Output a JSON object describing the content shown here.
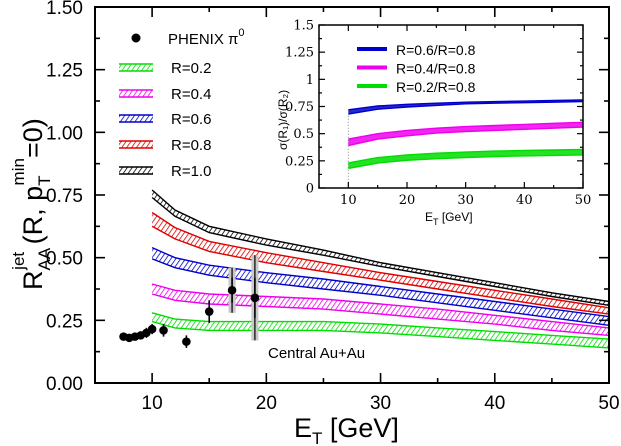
{
  "chart_data": [
    {
      "type": "area",
      "title": "",
      "xlabel": "E",
      "xlabel_sub": "T",
      "xlabel_unit": " [GeV]",
      "ylabel": {
        "base": "R",
        "sub": "AA",
        "sup": "jet",
        "paren_open": " (R, p",
        "paren_sub": "T",
        "paren_sup": "min",
        "paren_close": "=0)"
      },
      "xlim": [
        5,
        50
      ],
      "ylim": [
        0,
        1.5
      ],
      "xticks": [
        {
          "v": 10,
          "label": "10"
        },
        {
          "v": 20,
          "label": "20"
        },
        {
          "v": 30,
          "label": "30"
        },
        {
          "v": 40,
          "label": "40"
        },
        {
          "v": 50,
          "label": "50"
        }
      ],
      "yticks": [
        {
          "v": 0.0,
          "label": "0.00"
        },
        {
          "v": 0.25,
          "label": "0.25"
        },
        {
          "v": 0.5,
          "label": "0.50"
        },
        {
          "v": 0.75,
          "label": "0.75"
        },
        {
          "v": 1.0,
          "label": "1.00"
        },
        {
          "v": 1.25,
          "label": "1.25"
        },
        {
          "v": 1.5,
          "label": "1.50"
        }
      ],
      "series": [
        {
          "name": "R=0.2",
          "color": "#00dd00",
          "x": [
            10,
            12,
            15,
            20,
            25,
            30,
            35,
            40,
            45,
            50
          ],
          "upper": [
            0.28,
            0.255,
            0.245,
            0.245,
            0.245,
            0.235,
            0.22,
            0.205,
            0.19,
            0.175
          ],
          "lower": [
            0.245,
            0.22,
            0.21,
            0.21,
            0.21,
            0.2,
            0.185,
            0.17,
            0.155,
            0.14
          ]
        },
        {
          "name": "R=0.4",
          "color": "#ee00ee",
          "x": [
            10,
            12,
            15,
            20,
            25,
            30,
            35,
            40,
            45,
            50
          ],
          "upper": [
            0.395,
            0.37,
            0.355,
            0.345,
            0.335,
            0.315,
            0.295,
            0.27,
            0.245,
            0.22
          ],
          "lower": [
            0.355,
            0.33,
            0.315,
            0.305,
            0.295,
            0.275,
            0.255,
            0.235,
            0.21,
            0.19
          ]
        },
        {
          "name": "R=0.6",
          "color": "#0000cc",
          "x": [
            10,
            12,
            15,
            20,
            25,
            30,
            35,
            40,
            45,
            50
          ],
          "upper": [
            0.54,
            0.5,
            0.47,
            0.44,
            0.415,
            0.385,
            0.355,
            0.325,
            0.295,
            0.265
          ],
          "lower": [
            0.495,
            0.46,
            0.43,
            0.4,
            0.375,
            0.35,
            0.32,
            0.29,
            0.26,
            0.23
          ]
        },
        {
          "name": "R=0.8",
          "color": "#dd0000",
          "x": [
            10,
            12,
            15,
            20,
            25,
            30,
            35,
            40,
            45,
            50
          ],
          "upper": [
            0.68,
            0.62,
            0.565,
            0.52,
            0.48,
            0.44,
            0.405,
            0.37,
            0.335,
            0.3
          ],
          "lower": [
            0.625,
            0.575,
            0.525,
            0.48,
            0.445,
            0.41,
            0.375,
            0.34,
            0.305,
            0.275
          ]
        },
        {
          "name": "R=1.0",
          "color": "#000000",
          "x": [
            10,
            12,
            15,
            20,
            25,
            30,
            35,
            40,
            45,
            50
          ],
          "upper": [
            0.77,
            0.69,
            0.625,
            0.575,
            0.53,
            0.48,
            0.44,
            0.4,
            0.36,
            0.325
          ],
          "lower": [
            0.74,
            0.665,
            0.6,
            0.55,
            0.51,
            0.465,
            0.425,
            0.385,
            0.345,
            0.31
          ]
        }
      ],
      "points": {
        "name": "PHENIX",
        "name_sup": "0",
        "data": [
          {
            "x": 7.5,
            "y": 0.185,
            "err": 0.015
          },
          {
            "x": 8.0,
            "y": 0.18,
            "err": 0.015
          },
          {
            "x": 8.5,
            "y": 0.185,
            "err": 0.015
          },
          {
            "x": 9.0,
            "y": 0.19,
            "err": 0.015
          },
          {
            "x": 9.5,
            "y": 0.2,
            "err": 0.02
          },
          {
            "x": 10.0,
            "y": 0.215,
            "err": 0.02
          },
          {
            "x": 11.0,
            "y": 0.21,
            "err": 0.025
          },
          {
            "x": 13.0,
            "y": 0.165,
            "err": 0.025
          },
          {
            "x": 15.0,
            "y": 0.285,
            "err": 0.045,
            "sys": 0.0
          },
          {
            "x": 17.0,
            "y": 0.37,
            "err": 0.05,
            "sys": 0.09
          },
          {
            "x": 19.0,
            "y": 0.34,
            "err": 0.08,
            "sys": 0.17
          }
        ]
      },
      "annotation": "Central Au+Au",
      "legend": {
        "placement": "top-left"
      }
    },
    {
      "type": "area",
      "title": "",
      "xlabel": "E",
      "xlabel_sub": "T",
      "xlabel_unit": " [GeV]",
      "ylabel": "σ(R₁)/σ(R₂)",
      "xlim": [
        5,
        50
      ],
      "ylim": [
        0,
        1.5
      ],
      "xticks": [
        {
          "v": 10,
          "label": "10"
        },
        {
          "v": 20,
          "label": "20"
        },
        {
          "v": 30,
          "label": "30"
        },
        {
          "v": 40,
          "label": "40"
        },
        {
          "v": 50,
          "label": "50"
        }
      ],
      "yticks": [
        {
          "v": 0.0,
          "label": "0"
        },
        {
          "v": 0.25,
          "label": "0.25"
        },
        {
          "v": 0.5,
          "label": "0.5"
        },
        {
          "v": 0.75,
          "label": "0.75"
        },
        {
          "v": 1.0,
          "label": "1"
        },
        {
          "v": 1.25,
          "label": "1.25"
        },
        {
          "v": 1.5,
          "label": "1.5"
        }
      ],
      "series": [
        {
          "name": "R=0.6/R=0.8",
          "color": "#0000cc",
          "x": [
            10,
            15,
            20,
            25,
            30,
            35,
            40,
            45,
            50
          ],
          "upper": [
            0.72,
            0.755,
            0.77,
            0.78,
            0.79,
            0.795,
            0.8,
            0.805,
            0.81
          ],
          "lower": [
            0.68,
            0.725,
            0.745,
            0.76,
            0.775,
            0.78,
            0.785,
            0.79,
            0.795
          ]
        },
        {
          "name": "R=0.4/R=0.8",
          "color": "#ee00ee",
          "x": [
            10,
            15,
            20,
            25,
            30,
            35,
            40,
            45,
            50
          ],
          "upper": [
            0.45,
            0.5,
            0.53,
            0.55,
            0.565,
            0.575,
            0.585,
            0.595,
            0.605
          ],
          "lower": [
            0.39,
            0.45,
            0.48,
            0.505,
            0.52,
            0.53,
            0.54,
            0.55,
            0.56
          ]
        },
        {
          "name": "R=0.2/R=0.8",
          "color": "#00dd00",
          "x": [
            10,
            15,
            20,
            25,
            30,
            35,
            40,
            45,
            50
          ],
          "upper": [
            0.23,
            0.28,
            0.305,
            0.32,
            0.33,
            0.34,
            0.345,
            0.35,
            0.355
          ],
          "lower": [
            0.18,
            0.23,
            0.255,
            0.27,
            0.28,
            0.29,
            0.295,
            0.3,
            0.305
          ]
        }
      ],
      "legend": {
        "placement": "top-left"
      }
    }
  ]
}
